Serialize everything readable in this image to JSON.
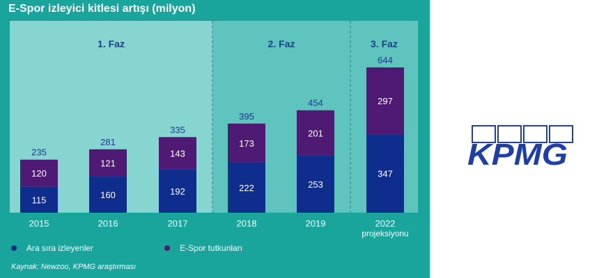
{
  "chart_data": {
    "type": "bar",
    "stacked": true,
    "title": "E-Spor izleyici kitlesi artışı (milyon)",
    "categories": [
      "2015",
      "2016",
      "2017",
      "2018",
      "2019",
      "2022"
    ],
    "category_sublabels": [
      "",
      "",
      "",
      "",
      "",
      "projeksiyonu"
    ],
    "series": [
      {
        "name": "Ara sıra izleyenler",
        "values": [
          115,
          160,
          192,
          222,
          253,
          347
        ],
        "color": "#0e2d8d"
      },
      {
        "name": "E-Spor tutkunları",
        "values": [
          120,
          121,
          143,
          173,
          201,
          297
        ],
        "color": "#4f1a73"
      }
    ],
    "totals": [
      235,
      281,
      335,
      395,
      454,
      644
    ],
    "phases": [
      {
        "label": "1. Faz",
        "categories": [
          "2015",
          "2016",
          "2017"
        ],
        "color": "#86d5d0"
      },
      {
        "label": "2. Faz",
        "categories": [
          "2018",
          "2019"
        ],
        "color": "#5ec4bd"
      },
      {
        "label": "3. Faz",
        "categories": [
          "2022"
        ],
        "color": "#5ec4bd"
      }
    ],
    "ylim": [
      0,
      700
    ],
    "xlabel": "",
    "ylabel": "",
    "legend_position": "bottom",
    "source": "Kaynak: Newzoo, KPMG araştırması"
  },
  "colors": {
    "panel_bg": "#1aa59c",
    "total_label": "#1f3b8c",
    "phase_label": "#1f3b8c",
    "value_label": "#ffffff"
  },
  "logo": {
    "text": "KPMG",
    "color": "#1f3fa8"
  }
}
